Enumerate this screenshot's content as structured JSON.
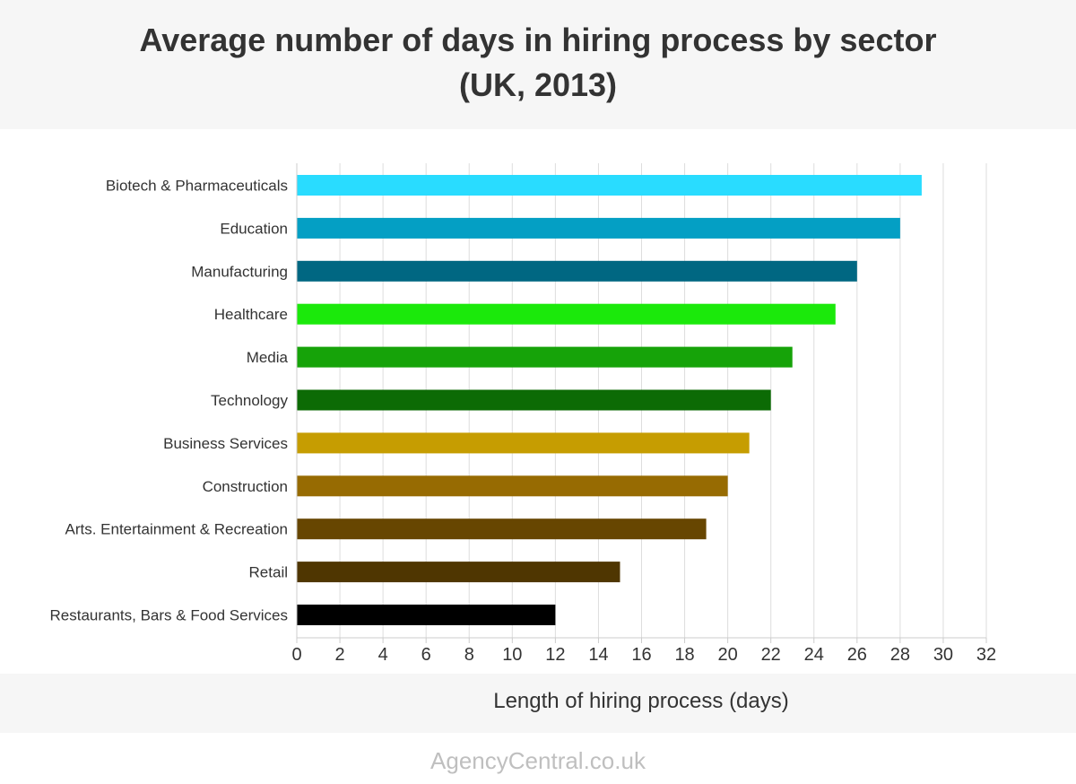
{
  "page": {
    "title": "Average number of days in hiring process by sector\n(UK, 2013)",
    "footer": "AgencyCentral.co.uk"
  },
  "chart_data": {
    "type": "bar",
    "orientation": "horizontal",
    "title": "Average number of days in hiring process by sector\n(UK, 2013)",
    "xlabel": "Length of hiring process (days)",
    "ylabel": "",
    "categories": [
      "Biotech & Pharmaceuticals",
      "Education",
      "Manufacturing",
      "Healthcare",
      "Media",
      "Technology",
      "Business Services",
      "Construction",
      "Arts. Entertainment & Recreation",
      "Retail",
      "Restaurants, Bars & Food Services"
    ],
    "values": [
      29,
      28,
      26,
      25,
      23,
      22,
      21,
      20,
      19,
      15,
      12
    ],
    "colors": [
      "#29dcff",
      "#049fc4",
      "#006782",
      "#1be90b",
      "#16a309",
      "#0c6b05",
      "#c69d01",
      "#976b02",
      "#674601",
      "#4f3601",
      "#000000"
    ],
    "xlim": [
      0,
      32
    ],
    "xticks": [
      0,
      2,
      4,
      6,
      8,
      10,
      12,
      14,
      16,
      18,
      20,
      22,
      24,
      26,
      28,
      30,
      32
    ],
    "grid": "vertical",
    "legend": "none"
  }
}
